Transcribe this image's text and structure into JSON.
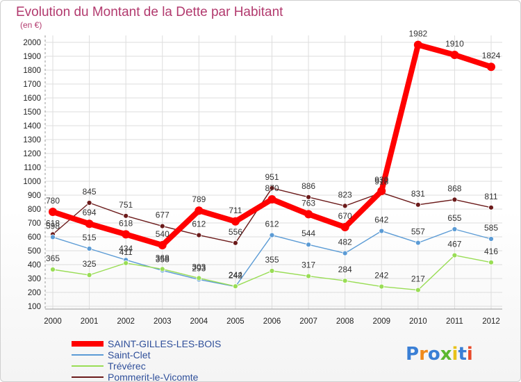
{
  "chart_data": {
    "type": "line",
    "title": "Evolution du Montant de la Dette par Habitant",
    "subtitle": "(en €)",
    "x": [
      "2000",
      "2001",
      "2002",
      "2003",
      "2004",
      "2005",
      "2006",
      "2007",
      "2008",
      "2009",
      "2010",
      "2011",
      "2012"
    ],
    "ylim": [
      100,
      2000
    ],
    "yticks": [
      100,
      200,
      300,
      400,
      500,
      600,
      700,
      800,
      900,
      1000,
      1100,
      1200,
      1300,
      1400,
      1500,
      1600,
      1700,
      1800,
      1900,
      2000
    ],
    "grid": true,
    "legend_position": "bottom-left",
    "series": [
      {
        "name": "SAINT-GILLES-LES-BOIS",
        "color": "#ff0000",
        "values": [
          780,
          694,
          618,
          540,
          789,
          711,
          870,
          763,
          670,
          930,
          1982,
          1910,
          1824
        ]
      },
      {
        "name": "Saint-Clet",
        "color": "#5b9bd5",
        "values": [
          598,
          515,
          434,
          358,
          293,
          242,
          612,
          544,
          482,
          642,
          557,
          655,
          585
        ]
      },
      {
        "name": "Trévérec",
        "color": "#99dd55",
        "values": [
          365,
          325,
          411,
          368,
          303,
          244,
          355,
          317,
          284,
          242,
          217,
          467,
          416
        ]
      },
      {
        "name": "Pommerit-le-Vicomte",
        "color": "#6b1a1a",
        "values": [
          618,
          845,
          751,
          677,
          612,
          556,
          951,
          886,
          823,
          918,
          831,
          868,
          811
        ]
      }
    ]
  },
  "logo": {
    "letters": [
      "P",
      "r",
      "o",
      "x",
      "i",
      "t",
      "i"
    ],
    "colors": [
      "#3a7fd5",
      "#f08a1c",
      "#3a7fd5",
      "#5cb82e",
      "#e8c21a",
      "#3a7fd5",
      "#e84a2a"
    ]
  }
}
